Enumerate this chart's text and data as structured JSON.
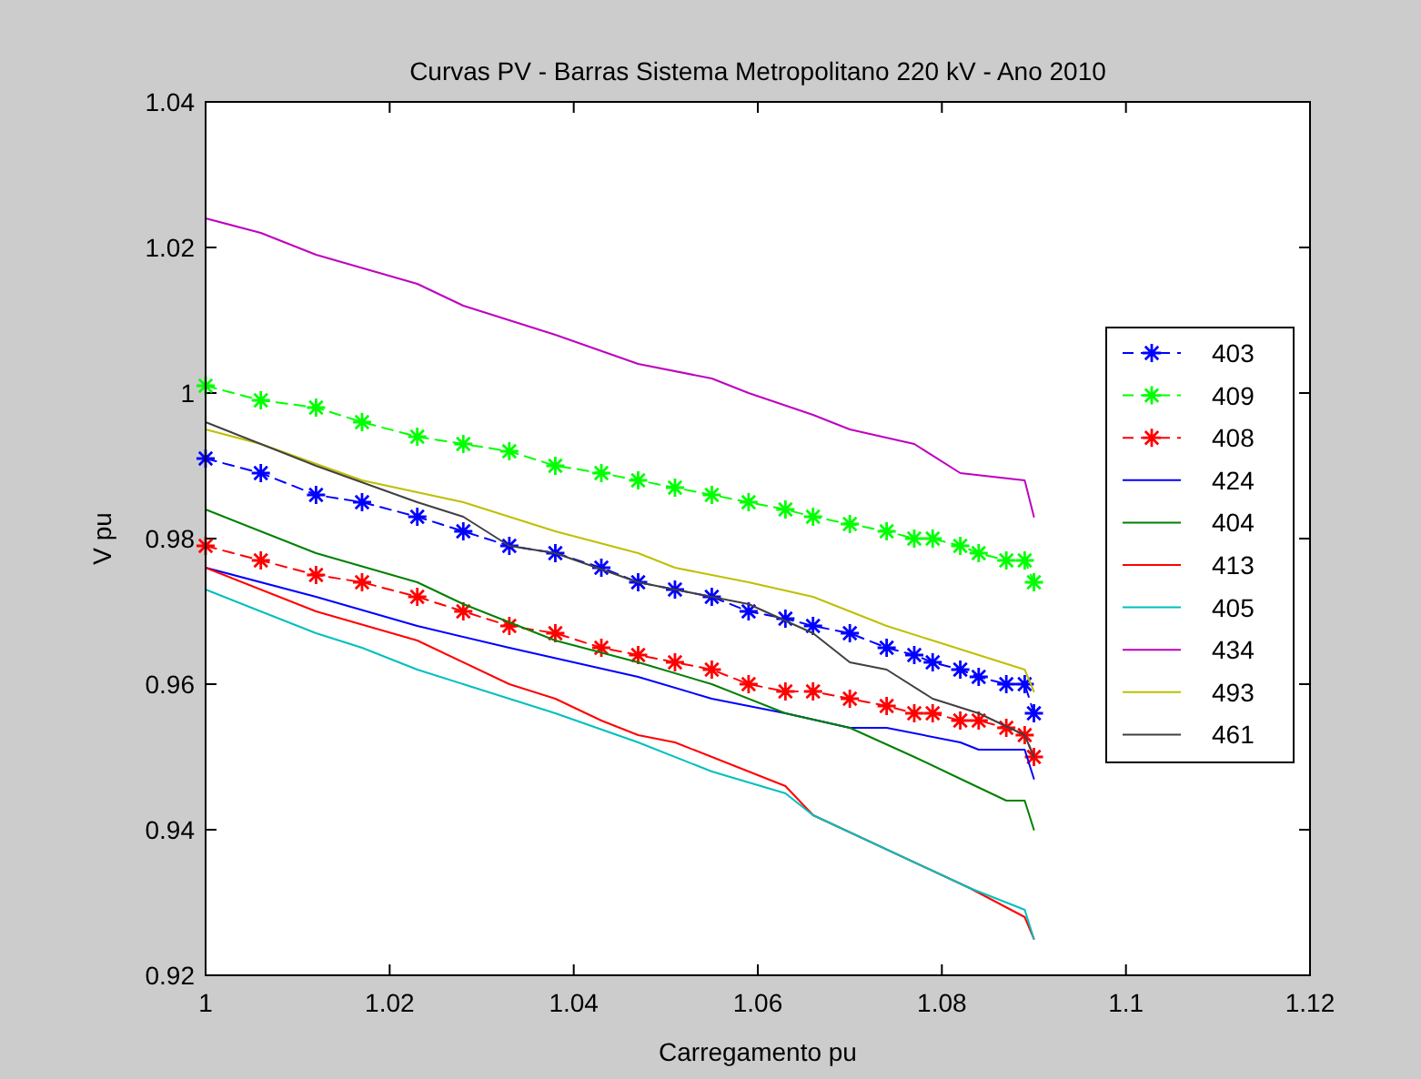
{
  "chart_data": {
    "type": "line",
    "title": "Curvas PV - Barras Sistema Metropolitano 220 kV - Ano 2010",
    "xlabel": "Carregamento pu",
    "ylabel": "V pu",
    "xlim": [
      1,
      1.12
    ],
    "xticks": [
      1,
      1.02,
      1.04,
      1.06,
      1.08,
      1.1,
      1.12
    ],
    "ylim": [
      0.92,
      1.04
    ],
    "yticks": [
      0.92,
      0.94,
      0.96,
      0.98,
      1,
      1.02,
      1.04
    ],
    "grid": false,
    "legend": "right",
    "series": [
      {
        "name": "403",
        "color": "#0000ff",
        "marker": "cross",
        "line_style": "dashed",
        "x": [
          1,
          1.006,
          1.012,
          1.017,
          1.023,
          1.028,
          1.033,
          1.038,
          1.043,
          1.047,
          1.051,
          1.055,
          1.059,
          1.063,
          1.066,
          1.07,
          1.074,
          1.077,
          1.079,
          1.082,
          1.084,
          1.087,
          1.089,
          1.09
        ],
        "values": [
          0.991,
          0.989,
          0.986,
          0.985,
          0.983,
          0.981,
          0.979,
          0.978,
          0.976,
          0.974,
          0.973,
          0.972,
          0.97,
          0.969,
          0.968,
          0.967,
          0.965,
          0.964,
          0.963,
          0.962,
          0.961,
          0.96,
          0.96,
          0.956
        ]
      },
      {
        "name": "409",
        "color": "#00ff00",
        "marker": "cross",
        "line_style": "dashed",
        "x": [
          1,
          1.006,
          1.012,
          1.017,
          1.023,
          1.028,
          1.033,
          1.038,
          1.043,
          1.047,
          1.051,
          1.055,
          1.059,
          1.063,
          1.066,
          1.07,
          1.074,
          1.077,
          1.079,
          1.082,
          1.084,
          1.087,
          1.089,
          1.09
        ],
        "values": [
          1.001,
          0.999,
          0.998,
          0.996,
          0.994,
          0.993,
          0.992,
          0.99,
          0.989,
          0.988,
          0.987,
          0.986,
          0.985,
          0.984,
          0.983,
          0.982,
          0.981,
          0.98,
          0.98,
          0.979,
          0.978,
          0.977,
          0.977,
          0.974
        ]
      },
      {
        "name": "408",
        "color": "#ff0000",
        "marker": "cross",
        "line_style": "dashed",
        "x": [
          1,
          1.006,
          1.012,
          1.017,
          1.023,
          1.028,
          1.033,
          1.038,
          1.043,
          1.047,
          1.051,
          1.055,
          1.059,
          1.063,
          1.066,
          1.07,
          1.074,
          1.077,
          1.079,
          1.082,
          1.084,
          1.087,
          1.089,
          1.09
        ],
        "values": [
          0.979,
          0.977,
          0.975,
          0.974,
          0.972,
          0.97,
          0.968,
          0.967,
          0.965,
          0.964,
          0.963,
          0.962,
          0.96,
          0.959,
          0.959,
          0.958,
          0.957,
          0.956,
          0.956,
          0.955,
          0.955,
          0.954,
          0.953,
          0.95
        ]
      },
      {
        "name": "424",
        "color": "#0000ff",
        "x": [
          1,
          1.012,
          1.023,
          1.033,
          1.047,
          1.055,
          1.063,
          1.07,
          1.074,
          1.082,
          1.084,
          1.089,
          1.09
        ],
        "values": [
          0.976,
          0.972,
          0.968,
          0.965,
          0.961,
          0.958,
          0.956,
          0.954,
          0.954,
          0.952,
          0.951,
          0.951,
          0.947
        ]
      },
      {
        "name": "404",
        "color": "#008000",
        "x": [
          1,
          1.012,
          1.023,
          1.028,
          1.038,
          1.047,
          1.055,
          1.063,
          1.07,
          1.077,
          1.082,
          1.087,
          1.089,
          1.09
        ],
        "values": [
          0.984,
          0.978,
          0.974,
          0.971,
          0.966,
          0.963,
          0.96,
          0.956,
          0.954,
          0.95,
          0.947,
          0.944,
          0.944,
          0.94
        ]
      },
      {
        "name": "413",
        "color": "#ff0000",
        "x": [
          1,
          1.012,
          1.023,
          1.033,
          1.038,
          1.043,
          1.047,
          1.051,
          1.063,
          1.066,
          1.083,
          1.089,
          1.09
        ],
        "values": [
          0.976,
          0.97,
          0.966,
          0.96,
          0.958,
          0.955,
          0.953,
          0.952,
          0.946,
          0.942,
          0.932,
          0.928,
          0.925
        ]
      },
      {
        "name": "405",
        "color": "#00bfbf",
        "x": [
          1,
          1.012,
          1.017,
          1.023,
          1.033,
          1.038,
          1.047,
          1.055,
          1.063,
          1.066,
          1.083,
          1.089,
          1.09
        ],
        "values": [
          0.973,
          0.967,
          0.965,
          0.962,
          0.958,
          0.956,
          0.952,
          0.948,
          0.945,
          0.942,
          0.932,
          0.929,
          0.925
        ]
      },
      {
        "name": "434",
        "color": "#bf00bf",
        "x": [
          1,
          1.006,
          1.012,
          1.023,
          1.028,
          1.038,
          1.047,
          1.055,
          1.059,
          1.066,
          1.07,
          1.077,
          1.082,
          1.089,
          1.09
        ],
        "values": [
          1.024,
          1.022,
          1.019,
          1.015,
          1.012,
          1.008,
          1.004,
          1.002,
          1,
          0.997,
          0.995,
          0.993,
          0.989,
          0.988,
          0.983
        ]
      },
      {
        "name": "493",
        "color": "#bfbf00",
        "x": [
          1,
          1.006,
          1.017,
          1.028,
          1.038,
          1.047,
          1.051,
          1.059,
          1.066,
          1.074,
          1.079,
          1.084,
          1.089,
          1.09
        ],
        "values": [
          0.995,
          0.993,
          0.988,
          0.985,
          0.981,
          0.978,
          0.976,
          0.974,
          0.972,
          0.968,
          0.966,
          0.964,
          0.962,
          0.959
        ]
      },
      {
        "name": "461",
        "color": "#404040",
        "x": [
          1,
          1.012,
          1.023,
          1.028,
          1.033,
          1.038,
          1.047,
          1.051,
          1.059,
          1.066,
          1.07,
          1.074,
          1.079,
          1.084,
          1.089,
          1.09
        ],
        "values": [
          0.996,
          0.99,
          0.985,
          0.983,
          0.979,
          0.978,
          0.974,
          0.973,
          0.971,
          0.967,
          0.963,
          0.962,
          0.958,
          0.956,
          0.953,
          0.95
        ]
      }
    ]
  }
}
